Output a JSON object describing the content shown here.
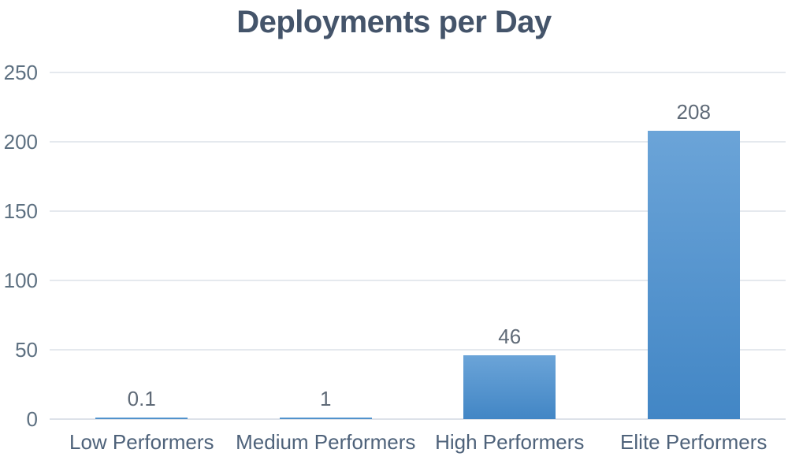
{
  "chart_data": {
    "type": "bar",
    "title": "Deployments per Day",
    "categories": [
      "Low Performers",
      "Medium Performers",
      "High Performers",
      "Elite Performers"
    ],
    "values": [
      0.1,
      1,
      46,
      208
    ],
    "value_labels": [
      "0.1",
      "1",
      "46",
      "208"
    ],
    "xlabel": "",
    "ylabel": "",
    "ylim": [
      0,
      250
    ],
    "yticks": [
      0,
      50,
      100,
      150,
      200,
      250
    ],
    "grid": true,
    "legend": "none",
    "colors": {
      "bar_gradient_top": "#6ba4d8",
      "bar_gradient_bottom": "#4286c5",
      "title_text": "#44546a",
      "tick_label": "#5d7081",
      "category_label": "#4e627a",
      "value_label": "#5f6a77",
      "gridline": "#e5e9ee",
      "axis_line": "#dde2e9",
      "background": "#ffffff"
    }
  }
}
